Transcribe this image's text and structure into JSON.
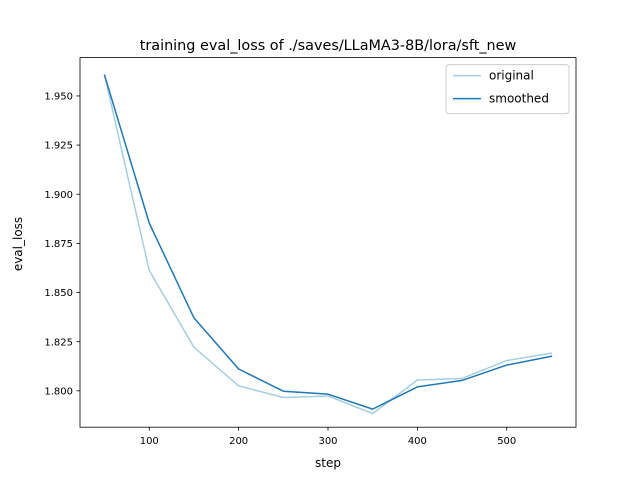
{
  "chart_data": {
    "type": "line",
    "title": "training eval_loss of ./saves/LLaMA3-8B/lora/sft_new",
    "xlabel": "step",
    "ylabel": "eval_loss",
    "xlim": [
      22.5,
      577.5
    ],
    "ylim": [
      1.7815,
      1.9695
    ],
    "x_ticks": [
      100,
      200,
      300,
      400,
      500
    ],
    "y_ticks": [
      1.8,
      1.825,
      1.85,
      1.875,
      1.9,
      1.925,
      1.95
    ],
    "x_tick_labels": [
      "100",
      "200",
      "300",
      "400",
      "500"
    ],
    "y_tick_labels": [
      "1.800",
      "1.825",
      "1.850",
      "1.875",
      "1.900",
      "1.925",
      "1.950"
    ],
    "grid": false,
    "legend_position": "top-right",
    "x": [
      50,
      100,
      150,
      200,
      250,
      300,
      350,
      400,
      450,
      500,
      550
    ],
    "series": [
      {
        "name": "original",
        "color": "#a6cee3",
        "values": [
          1.9605,
          1.8612,
          1.8222,
          1.8025,
          1.7966,
          1.7974,
          1.7884,
          1.8055,
          1.8063,
          1.8154,
          1.8192
        ]
      },
      {
        "name": "smoothed",
        "color": "#1f77b4",
        "values": [
          1.9605,
          1.8853,
          1.8371,
          1.8111,
          1.7998,
          1.7983,
          1.7907,
          1.802,
          1.8053,
          1.8131,
          1.8176
        ]
      }
    ]
  }
}
